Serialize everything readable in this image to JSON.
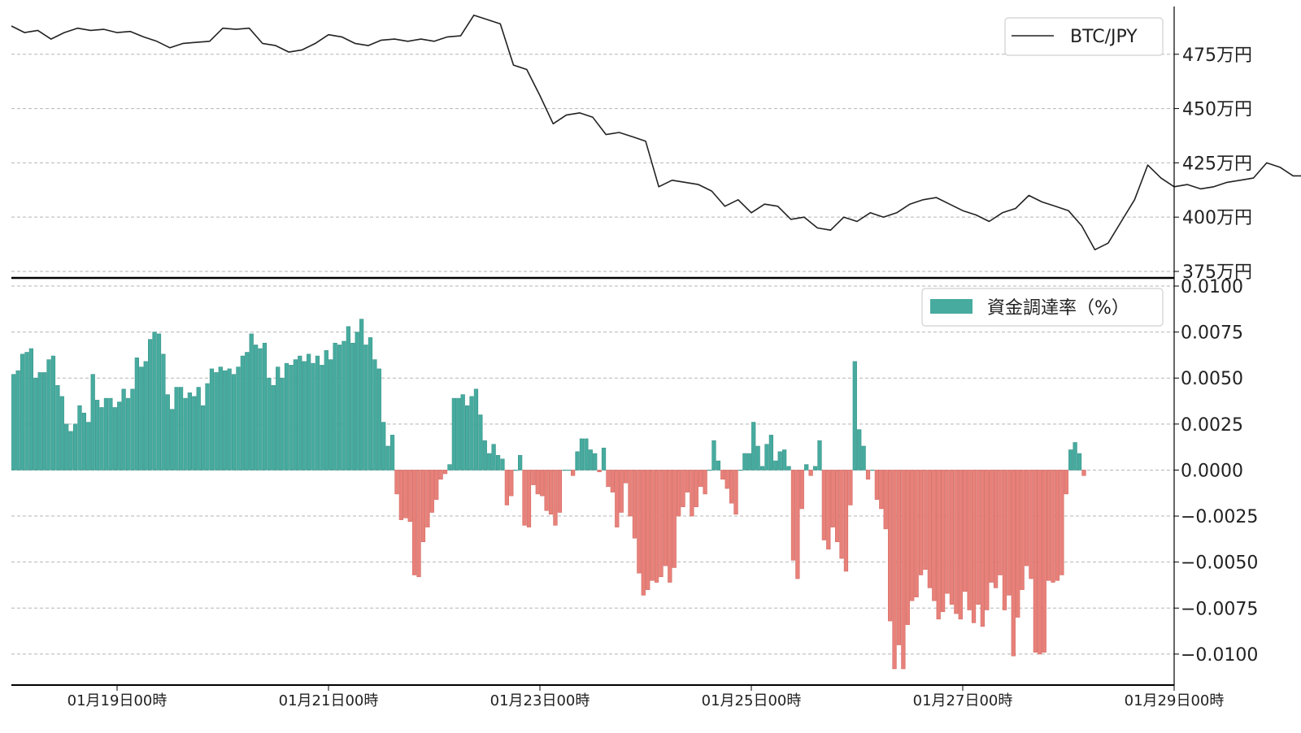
{
  "colors": {
    "price_line": "#222222",
    "positive_bar": "#47ab9f",
    "negative_bar": "#e8817a",
    "grid": "#b5b5b5",
    "axis": "#000000"
  },
  "chart_data": [
    {
      "type": "line",
      "legend": {
        "label": "BTC/JPY",
        "placement": "top-right"
      },
      "ylim": [
        3720000,
        4970000
      ],
      "yticks": [
        {
          "value": 3750000,
          "label": "375万円"
        },
        {
          "value": 4000000,
          "label": "400万円"
        },
        {
          "value": 4250000,
          "label": "425万円"
        },
        {
          "value": 4500000,
          "label": "450万円"
        },
        {
          "value": 4750000,
          "label": "475万円"
        }
      ],
      "grid": "horizontal dashed",
      "series": [
        {
          "name": "BTC/JPY",
          "points": [
            [
              0,
              4880000
            ],
            [
              6,
              4850000
            ],
            [
              12,
              4860000
            ],
            [
              18,
              4820000
            ],
            [
              24,
              4850000
            ],
            [
              30,
              4870000
            ],
            [
              36,
              4860000
            ],
            [
              42,
              4865000
            ],
            [
              48,
              4850000
            ],
            [
              54,
              4855000
            ],
            [
              60,
              4830000
            ],
            [
              66,
              4810000
            ],
            [
              72,
              4780000
            ],
            [
              78,
              4800000
            ],
            [
              84,
              4805000
            ],
            [
              90,
              4810000
            ],
            [
              96,
              4870000
            ],
            [
              102,
              4865000
            ],
            [
              108,
              4870000
            ],
            [
              114,
              4800000
            ],
            [
              120,
              4790000
            ],
            [
              126,
              4760000
            ],
            [
              132,
              4770000
            ],
            [
              138,
              4800000
            ],
            [
              144,
              4840000
            ],
            [
              150,
              4830000
            ],
            [
              156,
              4800000
            ],
            [
              162,
              4790000
            ],
            [
              168,
              4815000
            ],
            [
              174,
              4820000
            ],
            [
              180,
              4810000
            ],
            [
              186,
              4820000
            ],
            [
              192,
              4810000
            ],
            [
              198,
              4830000
            ],
            [
              204,
              4835000
            ],
            [
              210,
              4930000
            ],
            [
              216,
              4910000
            ],
            [
              222,
              4890000
            ],
            [
              228,
              4700000
            ],
            [
              234,
              4680000
            ],
            [
              240,
              4560000
            ],
            [
              246,
              4430000
            ],
            [
              252,
              4470000
            ],
            [
              258,
              4480000
            ],
            [
              264,
              4460000
            ],
            [
              270,
              4380000
            ],
            [
              276,
              4390000
            ],
            [
              282,
              4370000
            ],
            [
              288,
              4350000
            ],
            [
              294,
              4140000
            ],
            [
              300,
              4170000
            ],
            [
              306,
              4160000
            ],
            [
              312,
              4150000
            ],
            [
              318,
              4120000
            ],
            [
              324,
              4050000
            ],
            [
              330,
              4080000
            ],
            [
              336,
              4020000
            ],
            [
              342,
              4060000
            ],
            [
              348,
              4050000
            ],
            [
              354,
              3990000
            ],
            [
              360,
              4000000
            ],
            [
              366,
              3950000
            ],
            [
              372,
              3940000
            ],
            [
              378,
              4000000
            ],
            [
              384,
              3980000
            ],
            [
              390,
              4020000
            ],
            [
              396,
              4000000
            ],
            [
              402,
              4020000
            ],
            [
              408,
              4060000
            ],
            [
              414,
              4080000
            ],
            [
              420,
              4090000
            ],
            [
              426,
              4060000
            ],
            [
              432,
              4030000
            ],
            [
              438,
              4010000
            ],
            [
              444,
              3980000
            ],
            [
              450,
              4020000
            ],
            [
              456,
              4040000
            ],
            [
              462,
              4100000
            ],
            [
              468,
              4070000
            ],
            [
              474,
              4050000
            ],
            [
              480,
              4030000
            ],
            [
              486,
              3960000
            ],
            [
              492,
              3850000
            ],
            [
              498,
              3880000
            ],
            [
              504,
              3980000
            ],
            [
              510,
              4080000
            ],
            [
              516,
              4240000
            ],
            [
              522,
              4180000
            ],
            [
              528,
              4140000
            ],
            [
              534,
              4150000
            ],
            [
              540,
              4130000
            ],
            [
              546,
              4140000
            ],
            [
              552,
              4160000
            ],
            [
              558,
              4170000
            ],
            [
              564,
              4180000
            ],
            [
              570,
              4250000
            ],
            [
              576,
              4230000
            ],
            [
              582,
              4190000
            ],
            [
              588,
              4190000
            ],
            [
              594,
              4230000
            ],
            [
              600,
              4250000
            ],
            [
              606,
              4310000
            ],
            [
              612,
              4300000
            ],
            [
              618,
              4280000
            ],
            [
              624,
              4320000
            ],
            [
              630,
              4340000
            ],
            [
              636,
              4340000
            ],
            [
              642,
              4300000
            ],
            [
              648,
              4260000
            ],
            [
              654,
              4140000
            ],
            [
              660,
              4230000
            ],
            [
              666,
              4120000
            ],
            [
              672,
              4130000
            ],
            [
              678,
              4150000
            ],
            [
              684,
              4170000
            ],
            [
              690,
              4200000
            ],
            [
              696,
              4220000
            ],
            [
              702,
              4210000
            ],
            [
              708,
              4150000
            ],
            [
              714,
              4180000
            ]
          ]
        }
      ]
    },
    {
      "type": "bar",
      "legend": {
        "label": "資金調達率（%）",
        "placement": "top-right"
      },
      "ylim": [
        -0.0108,
        0.01
      ],
      "yticks": [
        {
          "value": 0.01,
          "label": "0.0100"
        },
        {
          "value": 0.0075,
          "label": "0.0075"
        },
        {
          "value": 0.005,
          "label": "0.0050"
        },
        {
          "value": 0.0025,
          "label": "0.0025"
        },
        {
          "value": 0.0,
          "label": "0.0000"
        },
        {
          "value": -0.0025,
          "label": "−0.0025"
        },
        {
          "value": -0.005,
          "label": "−0.0050"
        },
        {
          "value": -0.0075,
          "label": "−0.0075"
        },
        {
          "value": -0.01,
          "label": "−0.0100"
        }
      ],
      "grid": "horizontal dashed",
      "series": [
        {
          "name": "資金調達率（%）",
          "step_hours": 2,
          "values": [
            0.0052,
            0.0054,
            0.0063,
            0.0064,
            0.0066,
            0.005,
            0.0053,
            0.0053,
            0.006,
            0.0062,
            0.0046,
            0.004,
            0.0025,
            0.0021,
            0.0025,
            0.0035,
            0.0031,
            0.0026,
            0.0052,
            0.0038,
            0.0034,
            0.0039,
            0.0039,
            0.0034,
            0.0037,
            0.0044,
            0.0039,
            0.0044,
            0.0061,
            0.0056,
            0.0059,
            0.0071,
            0.0075,
            0.0074,
            0.0063,
            0.0041,
            0.0033,
            0.0045,
            0.0045,
            0.0039,
            0.0042,
            0.004,
            0.0045,
            0.0035,
            0.0047,
            0.0055,
            0.0053,
            0.0056,
            0.0054,
            0.0055,
            0.0052,
            0.0056,
            0.0062,
            0.0064,
            0.0074,
            0.0068,
            0.0066,
            0.0069,
            0.005,
            0.0046,
            0.0056,
            0.005,
            0.0058,
            0.0057,
            0.006,
            0.0062,
            0.0059,
            0.0063,
            0.0058,
            0.0062,
            0.0057,
            0.0065,
            0.006,
            0.0069,
            0.0068,
            0.007,
            0.0078,
            0.0069,
            0.0075,
            0.0082,
            0.0068,
            0.0072,
            0.006,
            0.0055,
            0.0026,
            0.0013,
            0.0019,
            -0.0013,
            -0.0027,
            -0.0026,
            -0.0028,
            -0.0057,
            -0.0058,
            -0.0039,
            -0.0031,
            -0.0023,
            -0.0016,
            -0.0005,
            -0.0002,
            0.0003,
            0.0039,
            0.0039,
            0.0041,
            0.0035,
            0.004,
            0.0044,
            0.003,
            0.0016,
            0.0009,
            0.0014,
            0.0008,
            0.0006,
            -0.0019,
            -0.0014,
            0.0,
            0.0008,
            -0.003,
            -0.0031,
            -0.0008,
            -0.0013,
            -0.0014,
            -0.0022,
            -0.0024,
            -0.003,
            -0.0023,
            0.0,
            0.0,
            -0.0003,
            0.001,
            0.0017,
            0.0017,
            0.0011,
            0.0009,
            -0.0001,
            0.0012,
            -0.0009,
            -0.0012,
            -0.0031,
            -0.0023,
            -0.0007,
            -0.0025,
            -0.0037,
            -0.0056,
            -0.0068,
            -0.0065,
            -0.006,
            -0.0061,
            -0.0058,
            -0.0052,
            -0.0061,
            -0.0053,
            -0.0025,
            -0.002,
            -0.0012,
            -0.0025,
            -0.002,
            -0.0009,
            -0.0013,
            0.0,
            0.0016,
            0.0005,
            -0.0005,
            -0.001,
            -0.0018,
            -0.0024,
            0.0,
            0.0009,
            0.0009,
            0.0026,
            0.0013,
            0.0002,
            0.0014,
            0.0019,
            0.0005,
            0.001,
            0.0011,
            0.0002,
            -0.0049,
            -0.0059,
            -0.0021,
            0.0003,
            -0.0003,
            0.0002,
            0.0016,
            -0.0038,
            -0.0043,
            -0.0031,
            -0.0039,
            -0.0048,
            -0.0055,
            -0.0019,
            0.0059,
            0.0022,
            0.0013,
            -0.0005,
            0.0,
            -0.0016,
            -0.0021,
            -0.0032,
            -0.0082,
            -0.0108,
            -0.0095,
            -0.0108,
            -0.0084,
            -0.0071,
            -0.0069,
            -0.0057,
            -0.0054,
            -0.0064,
            -0.0071,
            -0.0081,
            -0.0077,
            -0.0067,
            -0.0073,
            -0.0078,
            -0.0081,
            -0.0066,
            -0.0076,
            -0.0083,
            -0.0073,
            -0.0085,
            -0.0076,
            -0.0061,
            -0.0064,
            -0.0057,
            -0.0076,
            -0.0068,
            -0.0101,
            -0.008,
            -0.0065,
            -0.0052,
            -0.0059,
            -0.0099,
            -0.01,
            -0.0099,
            -0.006,
            -0.0061,
            -0.006,
            -0.0057,
            -0.0013,
            0.0011,
            0.0015,
            0.0009,
            -0.0003
          ]
        }
      ]
    }
  ],
  "shared_x": {
    "ticks": [
      {
        "hour": 48,
        "label": "01月19日00時"
      },
      {
        "hour": 144,
        "label": "01月21日00時"
      },
      {
        "hour": 240,
        "label": "01月23日00時"
      },
      {
        "hour": 336,
        "label": "01月25日00時"
      },
      {
        "hour": 432,
        "label": "01月27日00時"
      },
      {
        "hour": 528,
        "label": "01月29日00時"
      }
    ],
    "xlim_hours": [
      0,
      528
    ]
  }
}
